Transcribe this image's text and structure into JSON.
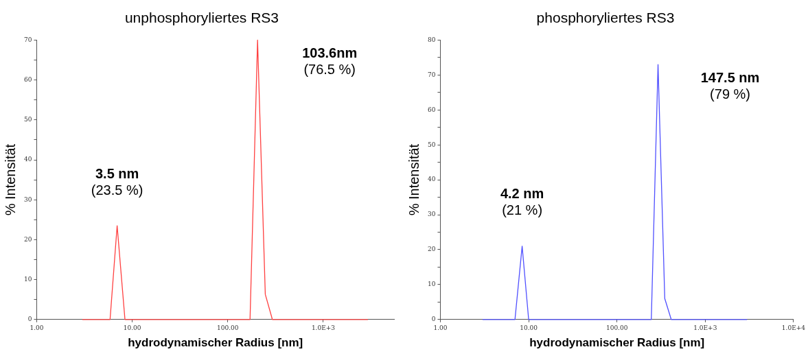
{
  "chart_data": [
    {
      "type": "line",
      "title": "unphosphoryliertes RS3",
      "xlabel": "hydrodynamischer Radius [nm]",
      "ylabel": "% Intensität",
      "log": "x",
      "grid": false,
      "legend": false,
      "marker": "none",
      "x": [
        3,
        5.86,
        6.95,
        8.39,
        171,
        205,
        247,
        293,
        2930
      ],
      "series": [
        {
          "color": "#ff4040",
          "values": [
            0,
            0,
            23.5,
            0,
            0,
            70,
            6.3,
            0,
            0
          ]
        }
      ],
      "xlim": [
        1,
        5500
      ],
      "xticks": [
        {
          "value": 1,
          "label": "1.00"
        },
        {
          "value": 10,
          "label": "10.00"
        },
        {
          "value": 100,
          "label": "100.00"
        },
        {
          "value": 1000,
          "label": "1.0E+3"
        }
      ],
      "ylim": [
        0,
        70
      ],
      "yticks": [
        0,
        {
          "value": 5,
          "label": null
        },
        10,
        {
          "value": 15,
          "label": null
        },
        20,
        {
          "value": 25,
          "label": null
        },
        30,
        {
          "value": 35,
          "label": null
        },
        40,
        {
          "value": 45,
          "label": null
        },
        50,
        {
          "value": 55,
          "label": null
        },
        60,
        {
          "value": 65,
          "label": null
        },
        70
      ],
      "annotations": [
        "3.5 nm",
        "(23.5 %)",
        "103.6nm",
        "(76.5 %)"
      ]
    },
    {
      "type": "line",
      "title": "phosphoryliertes RS3",
      "xlabel": "hydrodynamischer Radius [nm]",
      "ylabel": "% Intensität",
      "log": "x",
      "grid": false,
      "legend": false,
      "marker": "none",
      "x": [
        3,
        7.0,
        8.44,
        10,
        245,
        292,
        348,
        412,
        2980
      ],
      "series": [
        {
          "color": "#5050ff",
          "values": [
            0,
            0,
            21,
            0,
            0,
            73,
            6,
            0,
            0
          ]
        }
      ],
      "xlim": [
        1,
        10000
      ],
      "xticks": [
        {
          "value": 1,
          "label": "1.00"
        },
        {
          "value": 10,
          "label": "10.00"
        },
        {
          "value": 100,
          "label": "100.00"
        },
        {
          "value": 1000,
          "label": "1.0E+3"
        },
        {
          "value": 10000,
          "label": "1.0E+4"
        }
      ],
      "ylim": [
        0,
        80
      ],
      "yticks": [
        0,
        {
          "value": 5,
          "label": null
        },
        10,
        {
          "value": 15,
          "label": null
        },
        20,
        {
          "value": 25,
          "label": null
        },
        30,
        {
          "value": 35,
          "label": null
        },
        40,
        {
          "value": 45,
          "label": null
        },
        50,
        {
          "value": 55,
          "label": null
        },
        60,
        {
          "value": 65,
          "label": null
        },
        70,
        {
          "value": 75,
          "label": null
        },
        80
      ],
      "annotations": [
        "4.2 nm",
        "(21 %)",
        "147.5 nm",
        "(79 %)"
      ]
    }
  ]
}
